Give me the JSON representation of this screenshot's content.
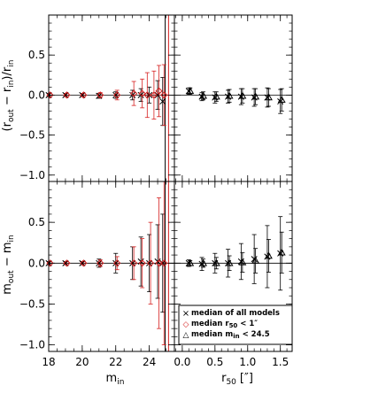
{
  "chart_data": {
    "type": "scatter",
    "layout": "2x2 panels with shared axes",
    "colors": {
      "all": "#000000",
      "r50_cut": "#d62020",
      "min_cut": "#000000"
    },
    "left_x": {
      "label_main": "m",
      "label_sub": "in",
      "range": [
        18,
        25.5
      ],
      "ticks": [
        18,
        20,
        22,
        24
      ],
      "tick_labels": [
        "18",
        "20",
        "22",
        "24"
      ]
    },
    "right_x": {
      "label_main": "r",
      "label_sub": "50",
      "label_suffix": "[″]",
      "range": [
        -0.12,
        1.68
      ],
      "ticks": [
        0.0,
        0.5,
        1.0,
        1.5
      ],
      "tick_labels": [
        "0.0",
        "0.5",
        "1.0",
        "1.5"
      ]
    },
    "y_ticks": [
      -1.0,
      -0.5,
      0.0,
      0.5
    ],
    "y_tick_labels": [
      "−1.0",
      "−0.5",
      "0.0",
      "0.5"
    ],
    "top_y": {
      "range": [
        -1.08,
        1.0
      ],
      "label": "(r_out - r_in)/r_in"
    },
    "bottom_y": {
      "range": [
        -1.08,
        1.0
      ],
      "label": "m_out - m_in"
    },
    "vlines": [
      {
        "x": 24.95,
        "color": "#000000"
      },
      {
        "x": 25.15,
        "color": "#d62020"
      }
    ],
    "panels": {
      "top_left": {
        "all": [
          {
            "x": 18.0,
            "y": 0.0,
            "err": 0.02
          },
          {
            "x": 19.0,
            "y": 0.0,
            "err": 0.02
          },
          {
            "x": 20.0,
            "y": 0.0,
            "err": 0.02
          },
          {
            "x": 21.0,
            "y": -0.01,
            "err": 0.03
          },
          {
            "x": 22.0,
            "y": 0.0,
            "err": 0.04
          },
          {
            "x": 23.0,
            "y": 0.0,
            "err": 0.06
          },
          {
            "x": 23.5,
            "y": 0.0,
            "err": 0.08
          },
          {
            "x": 24.0,
            "y": 0.0,
            "err": 0.1
          },
          {
            "x": 24.5,
            "y": 0.0,
            "err": 0.18
          },
          {
            "x": 24.8,
            "y": -0.08,
            "err": 0.3
          }
        ],
        "r50_cut": [
          {
            "x": 18.0,
            "y": 0.0,
            "err": 0.02
          },
          {
            "x": 19.0,
            "y": 0.0,
            "err": 0.02
          },
          {
            "x": 20.0,
            "y": 0.0,
            "err": 0.02
          },
          {
            "x": 21.0,
            "y": 0.0,
            "err": 0.03
          },
          {
            "x": 22.0,
            "y": 0.0,
            "err": 0.06
          },
          {
            "x": 23.0,
            "y": 0.02,
            "err": 0.15
          },
          {
            "x": 23.5,
            "y": 0.02,
            "err": 0.18
          },
          {
            "x": 23.8,
            "y": 0.0,
            "err": 0.28
          },
          {
            "x": 24.2,
            "y": 0.0,
            "err": 0.3
          },
          {
            "x": 24.5,
            "y": 0.05,
            "err": 0.32
          },
          {
            "x": 24.8,
            "y": 0.0,
            "err": 0.38
          }
        ]
      },
      "top_right": {
        "all": [
          {
            "x": 0.1,
            "y": 0.05,
            "err": 0.04
          },
          {
            "x": 0.3,
            "y": -0.02,
            "err": 0.05
          },
          {
            "x": 0.5,
            "y": -0.03,
            "err": 0.07
          },
          {
            "x": 0.7,
            "y": -0.02,
            "err": 0.08
          },
          {
            "x": 0.9,
            "y": -0.02,
            "err": 0.1
          },
          {
            "x": 1.1,
            "y": -0.03,
            "err": 0.11
          },
          {
            "x": 1.3,
            "y": -0.03,
            "err": 0.12
          },
          {
            "x": 1.5,
            "y": -0.08,
            "err": 0.15
          }
        ],
        "min_cut": [
          {
            "x": 0.1,
            "y": 0.05,
            "err": 0.04
          },
          {
            "x": 0.3,
            "y": -0.01,
            "err": 0.05
          },
          {
            "x": 0.5,
            "y": -0.02,
            "err": 0.06
          },
          {
            "x": 0.7,
            "y": -0.01,
            "err": 0.08
          },
          {
            "x": 0.9,
            "y": -0.01,
            "err": 0.09
          },
          {
            "x": 1.1,
            "y": -0.02,
            "err": 0.1
          },
          {
            "x": 1.3,
            "y": -0.03,
            "err": 0.11
          },
          {
            "x": 1.5,
            "y": -0.06,
            "err": 0.14
          }
        ]
      },
      "bottom_left": {
        "all": [
          {
            "x": 18.0,
            "y": 0.0,
            "err": 0.02
          },
          {
            "x": 19.0,
            "y": 0.0,
            "err": 0.02
          },
          {
            "x": 20.0,
            "y": 0.0,
            "err": 0.02
          },
          {
            "x": 21.0,
            "y": 0.0,
            "err": 0.05
          },
          {
            "x": 22.0,
            "y": 0.0,
            "err": 0.12
          },
          {
            "x": 23.0,
            "y": 0.0,
            "err": 0.2
          },
          {
            "x": 23.5,
            "y": 0.02,
            "err": 0.3
          },
          {
            "x": 24.0,
            "y": 0.0,
            "err": 0.35
          },
          {
            "x": 24.5,
            "y": 0.02,
            "err": 0.45
          },
          {
            "x": 24.8,
            "y": 0.0,
            "err": 0.6
          }
        ],
        "r50_cut": [
          {
            "x": 18.0,
            "y": 0.0,
            "err": 0.02
          },
          {
            "x": 19.0,
            "y": 0.0,
            "err": 0.02
          },
          {
            "x": 20.0,
            "y": 0.0,
            "err": 0.02
          },
          {
            "x": 21.0,
            "y": 0.0,
            "err": 0.04
          },
          {
            "x": 22.0,
            "y": 0.0,
            "err": 0.08
          },
          {
            "x": 23.0,
            "y": 0.0,
            "err": 0.2
          },
          {
            "x": 23.5,
            "y": 0.0,
            "err": 0.3
          },
          {
            "x": 24.0,
            "y": 0.0,
            "err": 0.5
          },
          {
            "x": 24.5,
            "y": 0.0,
            "err": 0.8
          },
          {
            "x": 24.8,
            "y": 0.0,
            "err": 1.0
          }
        ]
      },
      "bottom_right": {
        "all": [
          {
            "x": 0.1,
            "y": 0.0,
            "err": 0.04
          },
          {
            "x": 0.3,
            "y": -0.01,
            "err": 0.08
          },
          {
            "x": 0.5,
            "y": 0.0,
            "err": 0.12
          },
          {
            "x": 0.7,
            "y": 0.0,
            "err": 0.17
          },
          {
            "x": 0.9,
            "y": 0.02,
            "err": 0.22
          },
          {
            "x": 1.1,
            "y": 0.05,
            "err": 0.3
          },
          {
            "x": 1.3,
            "y": 0.08,
            "err": 0.38
          },
          {
            "x": 1.5,
            "y": 0.12,
            "err": 0.45
          }
        ],
        "min_cut": [
          {
            "x": 0.1,
            "y": 0.0,
            "err": 0.03
          },
          {
            "x": 0.3,
            "y": 0.0,
            "err": 0.05
          },
          {
            "x": 0.5,
            "y": 0.0,
            "err": 0.07
          },
          {
            "x": 0.7,
            "y": 0.0,
            "err": 0.09
          },
          {
            "x": 0.9,
            "y": 0.01,
            "err": 0.12
          },
          {
            "x": 1.1,
            "y": 0.03,
            "err": 0.15
          },
          {
            "x": 1.3,
            "y": 0.09,
            "err": 0.2
          },
          {
            "x": 1.5,
            "y": 0.13,
            "err": 0.25
          }
        ]
      }
    },
    "legend": {
      "placement": "bottom-right panel, lower right",
      "entries": [
        {
          "marker": "cross",
          "text": "median of all models"
        },
        {
          "marker": "diamond",
          "text_main": "median r",
          "text_sub": "50",
          "text_end": " < 1″"
        },
        {
          "marker": "triangle",
          "text_main": "median m",
          "text_sub": "in",
          "text_end": " < 24.5"
        }
      ]
    }
  }
}
